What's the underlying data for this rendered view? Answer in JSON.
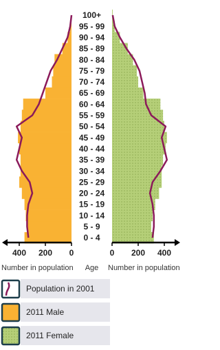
{
  "chart_data": {
    "type": "pyramid",
    "categories": [
      "0 - 4",
      "5 - 9",
      "10 - 14",
      "15 - 19",
      "20 - 24",
      "25 - 29",
      "30 - 34",
      "35 - 39",
      "40 - 44",
      "45 - 49",
      "50 - 54",
      "55 - 59",
      "60 - 64",
      "65 - 69",
      "70 - 74",
      "75 - 79",
      "80 - 84",
      "85 - 89",
      "90 - 94",
      "95 - 99",
      "100+"
    ],
    "category_label": "Age",
    "x_label_left": "Number in population",
    "x_label_right": "Number in population",
    "xlim": [
      0,
      500
    ],
    "xticks": [
      0,
      200,
      400
    ],
    "series": [
      {
        "name": "Population in 2001",
        "color": "#8b1a5a",
        "male_values": [
          330,
          340,
          340,
          330,
          300,
          320,
          380,
          420,
          400,
          380,
          420,
          300,
          250,
          220,
          190,
          160,
          110,
          70,
          30,
          10,
          0
        ],
        "female_values": [
          310,
          320,
          320,
          310,
          290,
          310,
          370,
          420,
          400,
          380,
          410,
          300,
          260,
          250,
          230,
          210,
          170,
          110,
          60,
          20,
          5
        ]
      },
      {
        "name": "2011 Male",
        "color": "#f9b233",
        "values": [
          360,
          340,
          350,
          360,
          380,
          400,
          390,
          390,
          400,
          410,
          390,
          380,
          370,
          200,
          150,
          140,
          130,
          70,
          30,
          10,
          0
        ]
      },
      {
        "name": "2011 Female",
        "color": "#b5cf78",
        "values": [
          320,
          300,
          310,
          330,
          360,
          380,
          380,
          390,
          410,
          420,
          400,
          390,
          370,
          240,
          200,
          190,
          160,
          120,
          60,
          20,
          5
        ]
      }
    ]
  }
}
